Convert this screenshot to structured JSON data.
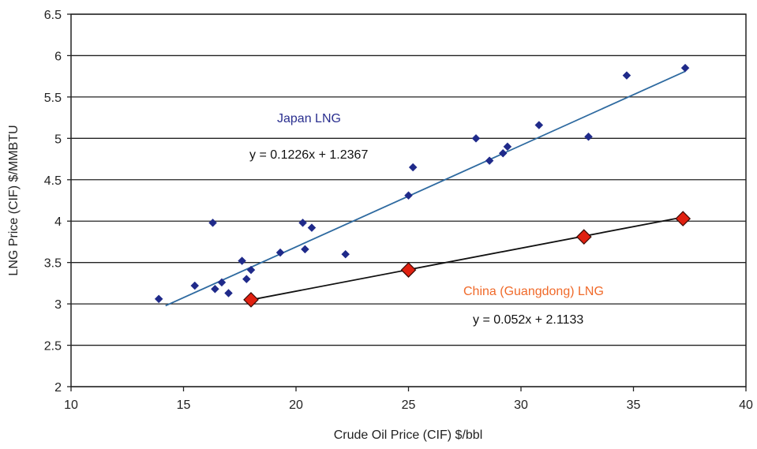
{
  "chart_data": {
    "type": "scatter",
    "title": "",
    "xlabel": "Crude Oil Price (CIF) $/bbl",
    "ylabel": "LNG Price (CIF) $/MMBTU",
    "xlim": [
      10,
      40
    ],
    "ylim": [
      2,
      6.5
    ],
    "x_ticks": [
      "10",
      "15",
      "20",
      "25",
      "30",
      "35",
      "40"
    ],
    "y_ticks": [
      "2",
      "2.5",
      "3",
      "3.5",
      "4",
      "4.5",
      "5",
      "5.5",
      "6",
      "6.5"
    ],
    "grid": "horizontal",
    "legend": "none",
    "series": [
      {
        "name": "Japan LNG",
        "color": "#1f2a8a",
        "marker": "small-diamond",
        "points": [
          [
            13.9,
            3.06
          ],
          [
            15.5,
            3.22
          ],
          [
            16.3,
            3.98
          ],
          [
            16.4,
            3.18
          ],
          [
            16.7,
            3.26
          ],
          [
            17.0,
            3.13
          ],
          [
            17.6,
            3.52
          ],
          [
            17.8,
            3.3
          ],
          [
            18.0,
            3.41
          ],
          [
            19.3,
            3.62
          ],
          [
            20.3,
            3.98
          ],
          [
            20.4,
            3.66
          ],
          [
            20.7,
            3.92
          ],
          [
            22.2,
            3.6
          ],
          [
            25.0,
            4.31
          ],
          [
            25.2,
            4.65
          ],
          [
            28.0,
            5.0
          ],
          [
            28.6,
            4.73
          ],
          [
            29.2,
            4.82
          ],
          [
            29.4,
            4.9
          ],
          [
            30.8,
            5.16
          ],
          [
            33.0,
            5.02
          ],
          [
            34.7,
            5.76
          ],
          [
            37.3,
            5.85
          ]
        ],
        "trendline": {
          "label": "y = 0.1226x + 1.2367",
          "slope": 0.1226,
          "intercept": 1.2367,
          "x_range": [
            14.2,
            37.3
          ],
          "color": "#2e6aa0"
        }
      },
      {
        "name": "China (Guangdong) LNG",
        "color": "#e02010",
        "marker": "large-diamond",
        "points": [
          [
            18.0,
            3.05
          ],
          [
            25.0,
            3.41
          ],
          [
            32.8,
            3.81
          ],
          [
            37.2,
            4.03
          ]
        ],
        "trendline": {
          "label": "y = 0.052x + 2.1133",
          "slope": 0.052,
          "intercept": 2.1133,
          "x_range": [
            18.0,
            37.2
          ],
          "color": "#111111"
        }
      }
    ]
  }
}
